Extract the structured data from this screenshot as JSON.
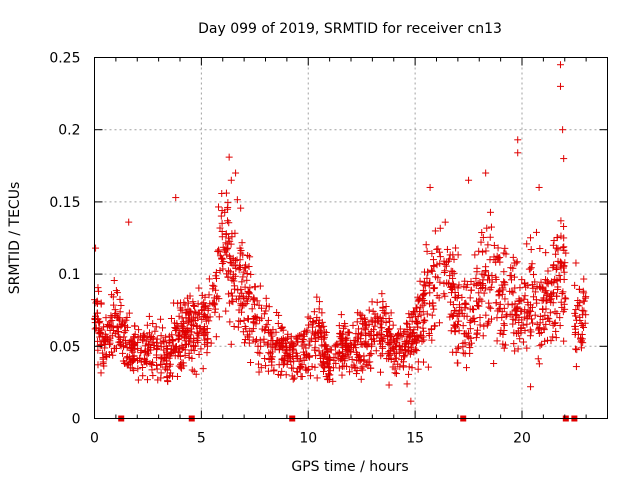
{
  "chart_data": {
    "type": "scatter",
    "title": "Day 099 of 2019, SRMTID for receiver cn13",
    "xlabel": "GPS time / hours",
    "ylabel": "SRMTID / TECUs",
    "xlim": [
      0,
      24
    ],
    "ylim": [
      0,
      0.25
    ],
    "x_ticks": [
      0,
      5,
      10,
      15,
      20
    ],
    "x_tick_labels": [
      "0",
      "5",
      "10",
      "15",
      "20"
    ],
    "y_ticks": [
      0,
      0.05,
      0.1,
      0.15,
      0.2,
      0.25
    ],
    "y_tick_labels": [
      "0",
      "0.05",
      "0.1",
      "0.15",
      "0.2",
      "0.25"
    ],
    "grid": true,
    "series_color": "#e00000",
    "marker": "plus",
    "envelope_note": "typical SRMTID level by hour, sampled densely as the scatter cloud",
    "envelope_hours": [
      0,
      0.5,
      1,
      1.5,
      2,
      2.5,
      3,
      3.5,
      4,
      4.5,
      5,
      5.5,
      6,
      6.5,
      7,
      7.5,
      8,
      8.5,
      9,
      9.5,
      10,
      10.5,
      11,
      11.5,
      12,
      12.5,
      13,
      13.5,
      14,
      14.5,
      15,
      15.5,
      16,
      16.5,
      17,
      17.5,
      18,
      18.5,
      19,
      19.5,
      20,
      20.5,
      21,
      21.5,
      22,
      22.5,
      23
    ],
    "envelope_values": [
      0.07,
      0.05,
      0.07,
      0.05,
      0.045,
      0.05,
      0.05,
      0.045,
      0.06,
      0.06,
      0.065,
      0.07,
      0.12,
      0.1,
      0.085,
      0.07,
      0.06,
      0.05,
      0.045,
      0.045,
      0.05,
      0.06,
      0.035,
      0.05,
      0.045,
      0.05,
      0.055,
      0.06,
      0.05,
      0.05,
      0.06,
      0.08,
      0.1,
      0.1,
      0.07,
      0.065,
      0.09,
      0.1,
      0.08,
      0.085,
      0.08,
      0.08,
      0.075,
      0.09,
      0.1,
      0.07,
      0.07
    ],
    "peaks": [
      {
        "x": 21.8,
        "y": 0.245
      },
      {
        "x": 21.8,
        "y": 0.23
      },
      {
        "x": 21.9,
        "y": 0.2
      },
      {
        "x": 21.95,
        "y": 0.18
      },
      {
        "x": 19.8,
        "y": 0.193
      },
      {
        "x": 19.8,
        "y": 0.184
      },
      {
        "x": 6.3,
        "y": 0.181
      },
      {
        "x": 6.6,
        "y": 0.17
      },
      {
        "x": 6.4,
        "y": 0.165
      },
      {
        "x": 18.3,
        "y": 0.17
      },
      {
        "x": 17.5,
        "y": 0.165
      },
      {
        "x": 15.7,
        "y": 0.16
      },
      {
        "x": 20.8,
        "y": 0.16
      },
      {
        "x": 3.8,
        "y": 0.153
      },
      {
        "x": 1.6,
        "y": 0.136
      },
      {
        "x": 0.05,
        "y": 0.118
      },
      {
        "x": 14.8,
        "y": 0.012
      },
      {
        "x": 20.4,
        "y": 0.022
      }
    ],
    "zero_values_x": [
      1.25,
      4.55,
      9.25,
      17.25,
      22.05,
      22.45
    ]
  }
}
